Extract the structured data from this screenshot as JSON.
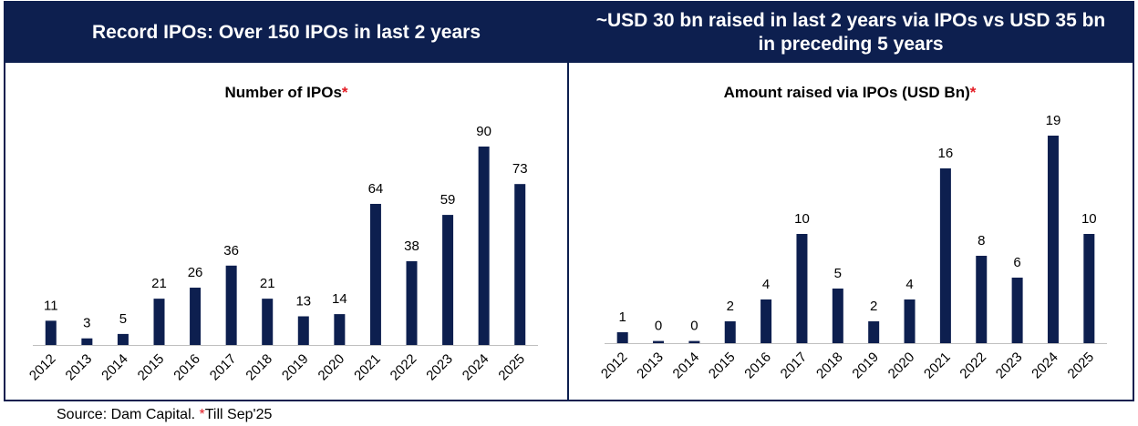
{
  "panels": {
    "left_header": "Record IPOs: Over 150 IPOs in last 2 years",
    "right_header": "~USD 30 bn raised in last 2 years via IPOs vs USD 35 bn in preceding 5 years"
  },
  "footnote": {
    "source": "Source: Dam Capital. ",
    "star": "*",
    "note": "Till Sep'25"
  },
  "colors": {
    "bar": "#0d1f4f",
    "header_bg": "#0d1f4f",
    "asterisk": "#e31b23"
  },
  "chart_data": [
    {
      "type": "bar",
      "title": "Number of IPOs",
      "title_marker": "*",
      "categories": [
        "2012",
        "2013",
        "2014",
        "2015",
        "2016",
        "2017",
        "2018",
        "2019",
        "2020",
        "2021",
        "2022",
        "2023",
        "2024",
        "2025"
      ],
      "values": [
        11,
        3,
        5,
        21,
        26,
        36,
        21,
        13,
        14,
        64,
        38,
        59,
        90,
        73
      ],
      "labels": [
        "11",
        "3",
        "5",
        "21",
        "26",
        "36",
        "21",
        "13",
        "14",
        "64",
        "38",
        "59",
        "90",
        "73"
      ],
      "xlabel": "",
      "ylabel": "",
      "ylim": [
        0,
        90
      ]
    },
    {
      "type": "bar",
      "title": "Amount raised via IPOs (USD Bn)",
      "title_marker": "*",
      "categories": [
        "2012",
        "2013",
        "2014",
        "2015",
        "2016",
        "2017",
        "2018",
        "2019",
        "2020",
        "2021",
        "2022",
        "2023",
        "2024",
        "2025"
      ],
      "values": [
        1,
        0.2,
        0.2,
        2,
        4,
        10,
        5,
        2,
        4,
        16,
        8,
        6,
        19,
        10
      ],
      "labels": [
        "1",
        "0",
        "0",
        "2",
        "4",
        "10",
        "5",
        "2",
        "4",
        "16",
        "8",
        "6",
        "19",
        "10"
      ],
      "xlabel": "",
      "ylabel": "",
      "ylim": [
        0,
        19
      ]
    }
  ]
}
